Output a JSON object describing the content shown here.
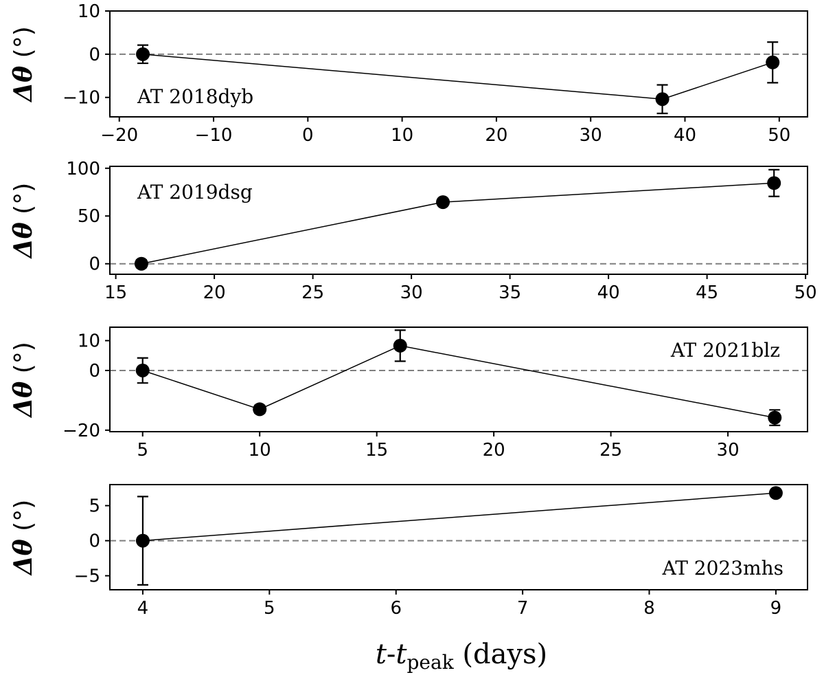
{
  "chart_data": [
    {
      "type": "line",
      "label": "AT 2018dyb",
      "label_position": "bottom-left",
      "ylabel": "Δθ (°)",
      "xlim": [
        -21,
        53
      ],
      "ylim": [
        -14.5,
        10
      ],
      "xticks": [
        -20,
        -10,
        0,
        10,
        20,
        30,
        40,
        50
      ],
      "xtick_labels": [
        "−20",
        "−10",
        "0",
        "10",
        "20",
        "30",
        "40",
        "50"
      ],
      "yticks": [
        -10,
        0,
        10
      ],
      "ytick_labels": [
        "−10",
        "0",
        "10"
      ],
      "zero_line": true,
      "series": [
        {
          "x": [
            -17.5,
            37.6,
            49.3
          ],
          "y": [
            0,
            -10.4,
            -1.9
          ],
          "yerr": [
            2.1,
            3.3,
            4.7
          ]
        }
      ]
    },
    {
      "type": "line",
      "label": "AT 2019dsg",
      "label_position": "top-left",
      "ylabel": "Δθ (°)",
      "xlim": [
        14.7,
        50.1
      ],
      "ylim": [
        -11,
        102
      ],
      "xticks": [
        15,
        20,
        25,
        30,
        35,
        40,
        45,
        50
      ],
      "xtick_labels": [
        "15",
        "20",
        "25",
        "30",
        "35",
        "40",
        "45",
        "50"
      ],
      "yticks": [
        0,
        50,
        100
      ],
      "ytick_labels": [
        "0",
        "50",
        "100"
      ],
      "zero_line": true,
      "series": [
        {
          "x": [
            16.3,
            31.6,
            48.4
          ],
          "y": [
            0,
            64.5,
            84.5
          ],
          "yerr": [
            4,
            0,
            14
          ]
        }
      ]
    },
    {
      "type": "line",
      "label": "AT 2021blz",
      "label_position": "top-right",
      "ylabel": "Δθ (°)",
      "xlim": [
        3.6,
        33.4
      ],
      "ylim": [
        -20.5,
        14.5
      ],
      "xticks": [
        5,
        10,
        15,
        20,
        25,
        30
      ],
      "xtick_labels": [
        "5",
        "10",
        "15",
        "20",
        "25",
        "30"
      ],
      "yticks": [
        -20,
        0,
        10
      ],
      "ytick_labels": [
        "−20",
        "0",
        "10"
      ],
      "zero_line": true,
      "series": [
        {
          "x": [
            5,
            10,
            16,
            32
          ],
          "y": [
            0,
            -13,
            8.3,
            -15.8
          ],
          "yerr": [
            4.2,
            1.3,
            5.2,
            2.6
          ]
        }
      ]
    },
    {
      "type": "line",
      "label": "AT 2023mhs",
      "label_position": "bottom-right",
      "ylabel": "Δθ (°)",
      "xlabel": "t-t_peak (days)",
      "xlim": [
        3.74,
        9.25
      ],
      "ylim": [
        -7,
        8
      ],
      "xticks": [
        4,
        5,
        6,
        7,
        8,
        9
      ],
      "xtick_labels": [
        "4",
        "5",
        "6",
        "7",
        "8",
        "9"
      ],
      "yticks": [
        -5,
        0,
        5
      ],
      "ytick_labels": [
        "−5",
        "0",
        "5"
      ],
      "zero_line": true,
      "series": [
        {
          "x": [
            4,
            9
          ],
          "y": [
            0,
            6.8
          ],
          "yerr": [
            6.3,
            0
          ]
        }
      ]
    }
  ],
  "xlabel": {
    "t": "t",
    "sep": "-",
    "t2": "t",
    "sub": "peak",
    "units": " (days)"
  },
  "colors": {
    "marker": "#000000",
    "line": "#000000",
    "zero_line": "#7f7f7f",
    "axes": "#000000"
  }
}
